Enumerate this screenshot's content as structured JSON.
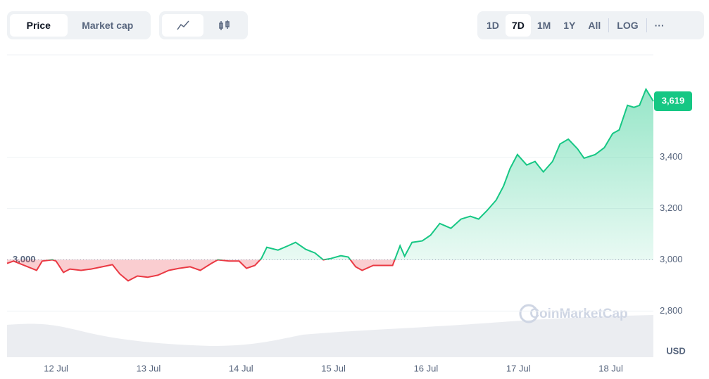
{
  "toolbar": {
    "tabs": [
      "Price",
      "Market cap"
    ],
    "ranges": [
      "1D",
      "7D",
      "1M",
      "1Y",
      "All",
      "LOG"
    ],
    "more": "···"
  },
  "chart_data": {
    "type": "line",
    "x": [
      11.47,
      11.54,
      11.79,
      11.85,
      11.96,
      12.0,
      12.08,
      12.15,
      12.27,
      12.38,
      12.5,
      12.61,
      12.69,
      12.78,
      12.88,
      12.99,
      13.1,
      13.22,
      13.33,
      13.45,
      13.56,
      13.68,
      13.75,
      13.87,
      13.98,
      14.06,
      14.15,
      14.22,
      14.28,
      14.4,
      14.51,
      14.59,
      14.7,
      14.8,
      14.89,
      14.97,
      15.08,
      15.16,
      15.24,
      15.31,
      15.43,
      15.54,
      15.64,
      15.72,
      15.77,
      15.85,
      15.96,
      16.05,
      16.15,
      16.27,
      16.38,
      16.48,
      16.57,
      16.66,
      16.76,
      16.84,
      16.91,
      16.99,
      17.09,
      17.18,
      17.27,
      17.37,
      17.45,
      17.54,
      17.64,
      17.71,
      17.83,
      17.93,
      18.02,
      18.09,
      18.18,
      18.25,
      18.31,
      18.38,
      18.46
    ],
    "values": [
      2986,
      2995,
      2959,
      2995,
      3000,
      2995,
      2951,
      2964,
      2959,
      2964,
      2973,
      2981,
      2945,
      2918,
      2937,
      2932,
      2940,
      2959,
      2967,
      2973,
      2959,
      2986,
      3000,
      2995,
      2995,
      2967,
      2978,
      3005,
      3049,
      3038,
      3055,
      3068,
      3041,
      3027,
      3000,
      3005,
      3016,
      3011,
      2973,
      2959,
      2978,
      2978,
      2978,
      3055,
      3014,
      3068,
      3074,
      3096,
      3142,
      3123,
      3159,
      3170,
      3159,
      3192,
      3233,
      3288,
      3356,
      3411,
      3370,
      3384,
      3343,
      3384,
      3452,
      3471,
      3433,
      3397,
      3411,
      3438,
      3493,
      3507,
      3603,
      3595,
      3603,
      3666,
      3619
    ],
    "color": "#16c784",
    "below_color": "#ea3943",
    "baseline": {
      "value": 3000,
      "label": "3,000"
    },
    "current": {
      "value": 3619,
      "label": "3,619"
    },
    "xlim": [
      11.47,
      18.46
    ],
    "xticks": [
      {
        "value": 12,
        "label": "12 Jul"
      },
      {
        "value": 13,
        "label": "13 Jul"
      },
      {
        "value": 14,
        "label": "14 Jul"
      },
      {
        "value": 15,
        "label": "15 Jul"
      },
      {
        "value": 16,
        "label": "16 Jul"
      },
      {
        "value": 17,
        "label": "17 Jul"
      },
      {
        "value": 18,
        "label": "18 Jul"
      }
    ],
    "ylim": [
      2620,
      3800
    ],
    "yticks": [
      {
        "value": 2800,
        "label": "2,800"
      },
      {
        "value": 3000,
        "label": "3,000"
      },
      {
        "value": 3200,
        "label": "3,200"
      },
      {
        "value": 3400,
        "label": "3,400"
      }
    ],
    "ylabel": "USD",
    "grid": true,
    "watermark": "CoinMarketCap"
  }
}
